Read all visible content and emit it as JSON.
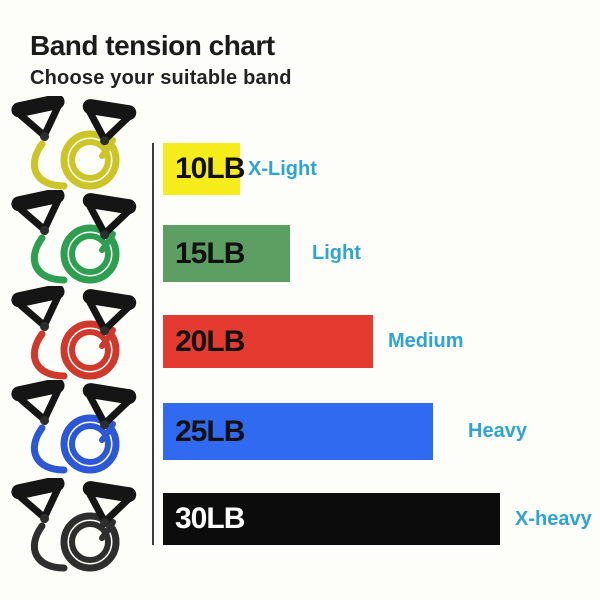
{
  "header": {
    "title": "Band tension chart",
    "subtitle": "Choose your suitable band"
  },
  "chart_data": {
    "type": "bar",
    "orientation": "horizontal",
    "title": "Band tension chart",
    "subtitle": "Choose your suitable band",
    "categories": [
      "10LB",
      "15LB",
      "20LB",
      "25LB",
      "30LB"
    ],
    "values": [
      10,
      15,
      20,
      25,
      30
    ],
    "value_unit": "LB",
    "bar_labels": [
      "X-Light",
      "Light",
      "Medium",
      "Heavy",
      "X-heavy"
    ],
    "bar_colors": [
      "#f6ec1c",
      "#5d9f63",
      "#e53a30",
      "#306af1",
      "#0c0c0c"
    ],
    "label_color": "#2fa3d4",
    "grid": false,
    "legend": "none",
    "axis": "single vertical baseline at left, no ticks"
  },
  "bands": {
    "level_label_color": "#2fa3d4",
    "axis_color": "#3c3c3c",
    "rows": [
      {
        "weight": "10LB",
        "level": "X-Light",
        "bar_color": "#f6ec1c",
        "weight_color": "#111111",
        "band_color": "#cdc428",
        "image": "yellow-resistance-band"
      },
      {
        "weight": "15LB",
        "level": "Light",
        "bar_color": "#5d9f63",
        "weight_color": "#111111",
        "band_color": "#2e9e51",
        "image": "green-resistance-band"
      },
      {
        "weight": "20LB",
        "level": "Medium",
        "bar_color": "#e53a30",
        "weight_color": "#111111",
        "band_color": "#cf382b",
        "image": "red-resistance-band"
      },
      {
        "weight": "25LB",
        "level": "Heavy",
        "bar_color": "#306af1",
        "weight_color": "#111111",
        "band_color": "#2c58d6",
        "image": "blue-resistance-band"
      },
      {
        "weight": "30LB",
        "level": "X-heavy",
        "bar_color": "#0c0c0c",
        "weight_color": "#ffffff",
        "band_color": "#2e2e2e",
        "image": "black-resistance-band"
      }
    ]
  }
}
